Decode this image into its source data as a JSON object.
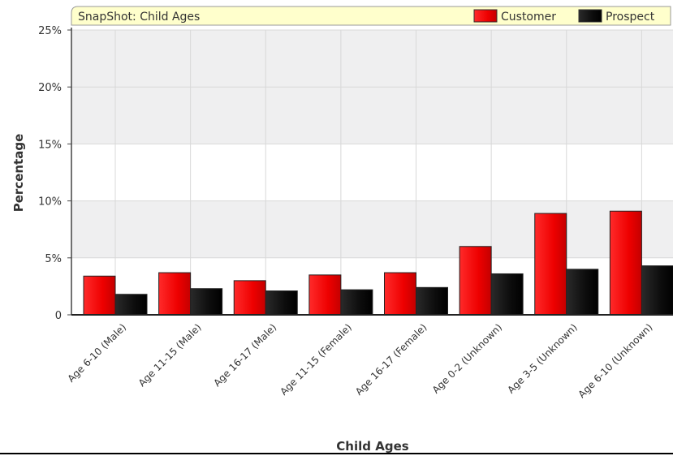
{
  "chart_data": {
    "type": "bar",
    "title": "SnapShot: Child Ages",
    "xlabel": "Child Ages",
    "ylabel": "Percentage",
    "ylim": [
      0,
      25
    ],
    "yticks": [
      "0",
      "5%",
      "10%",
      "15%",
      "20%",
      "25%"
    ],
    "categories": [
      "Age 6-10 (Male)",
      "Age 11-15 (Male)",
      "Age 16-17 (Male)",
      "Age 11-15 (Female)",
      "Age 16-17 (Female)",
      "Age 0-2 (Unknown)",
      "Age 3-5 (Unknown)",
      "Age 6-10 (Unknown)"
    ],
    "series": [
      {
        "name": "Customer",
        "color": "#ee0000",
        "values": [
          3.4,
          3.7,
          3.0,
          3.5,
          3.7,
          6.0,
          8.9,
          9.1
        ]
      },
      {
        "name": "Prospect",
        "color": "#111111",
        "values": [
          1.8,
          2.3,
          2.1,
          2.2,
          2.4,
          3.6,
          4.0,
          4.3
        ]
      }
    ],
    "legend_position": "top-right",
    "grid": true
  }
}
